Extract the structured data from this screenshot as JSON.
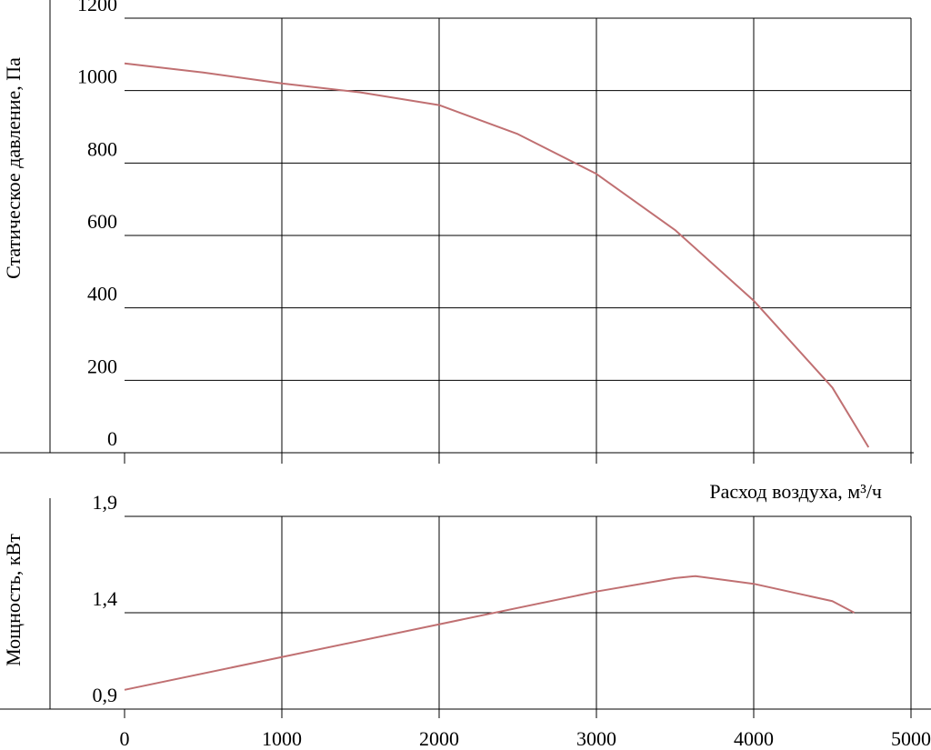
{
  "chart_data": [
    {
      "type": "line",
      "ylabel": "Статическое давление, Па",
      "x": [
        0,
        500,
        1000,
        1500,
        2000,
        2500,
        3000,
        3500,
        4000,
        4500,
        4730
      ],
      "values": [
        1075,
        1050,
        1020,
        995,
        960,
        880,
        770,
        615,
        420,
        180,
        15
      ],
      "color": "#c07072",
      "ylim": [
        0,
        1200
      ],
      "yticks": [
        0,
        200,
        400,
        600,
        800,
        1000,
        1200
      ],
      "grid": true
    },
    {
      "type": "line",
      "ylabel": "Мощность, кВт",
      "xlabel": "Расход воздуха, м³/ч",
      "x": [
        0,
        1000,
        2000,
        3000,
        3500,
        3630,
        4000,
        4500,
        4640
      ],
      "values": [
        1.0,
        1.17,
        1.34,
        1.51,
        1.58,
        1.59,
        1.55,
        1.46,
        1.4
      ],
      "color": "#c07072",
      "xlim": [
        0,
        5000
      ],
      "xticks": [
        0,
        1000,
        2000,
        3000,
        4000,
        5000
      ],
      "ylim": [
        0.9,
        1.9
      ],
      "yticks": [
        {
          "value": 0.9,
          "label": "0,9"
        },
        {
          "value": 1.4,
          "label": "1,4"
        },
        {
          "value": 1.9,
          "label": "1,9"
        }
      ],
      "grid": true
    }
  ]
}
